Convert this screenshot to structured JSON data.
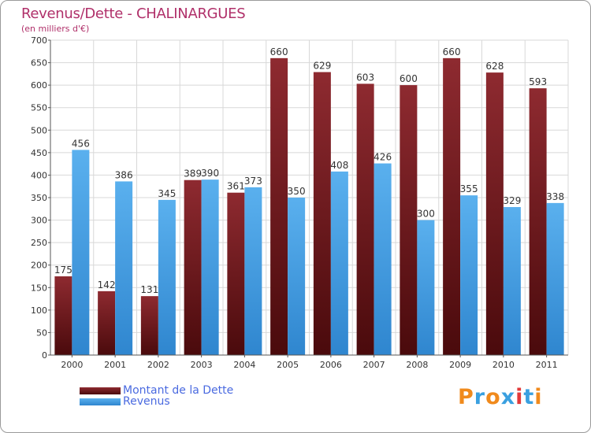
{
  "header": {
    "title": "Revenus/Dette - CHALINARGUES",
    "subtitle": "(en milliers d'€)"
  },
  "legend": {
    "dette_label": "Montant de la Dette",
    "revenus_label": "Revenus"
  },
  "logo": {
    "text": "Proxiti",
    "letter_colors": [
      "#f08a1c",
      "#3aa0e0",
      "#f08a1c",
      "#3aa0e0",
      "#e23a3a",
      "#3aa0e0",
      "#f08a1c"
    ]
  },
  "colors": {
    "dette": "#7a1e22",
    "revenus": "#4aa5e5",
    "title": "#b0306a",
    "legend_text": "#4a6ae0",
    "grid": "#d8d8d8"
  },
  "chart_data": {
    "type": "bar",
    "categories": [
      "2000",
      "2001",
      "2002",
      "2003",
      "2004",
      "2005",
      "2006",
      "2007",
      "2008",
      "2009",
      "2010",
      "2011"
    ],
    "series": [
      {
        "name": "Montant de la Dette",
        "values": [
          175,
          142,
          131,
          389,
          361,
          660,
          629,
          603,
          600,
          660,
          628,
          593
        ]
      },
      {
        "name": "Revenus",
        "values": [
          456,
          386,
          345,
          390,
          373,
          350,
          408,
          426,
          300,
          355,
          329,
          338
        ]
      }
    ],
    "title": "Revenus/Dette - CHALINARGUES",
    "ylabel": "(en milliers d'€)",
    "ylim": [
      0,
      700
    ],
    "yticks": [
      0,
      50,
      100,
      150,
      200,
      250,
      300,
      350,
      400,
      450,
      500,
      550,
      600,
      650,
      700
    ],
    "grid": true,
    "legend_position": "bottom-left"
  }
}
